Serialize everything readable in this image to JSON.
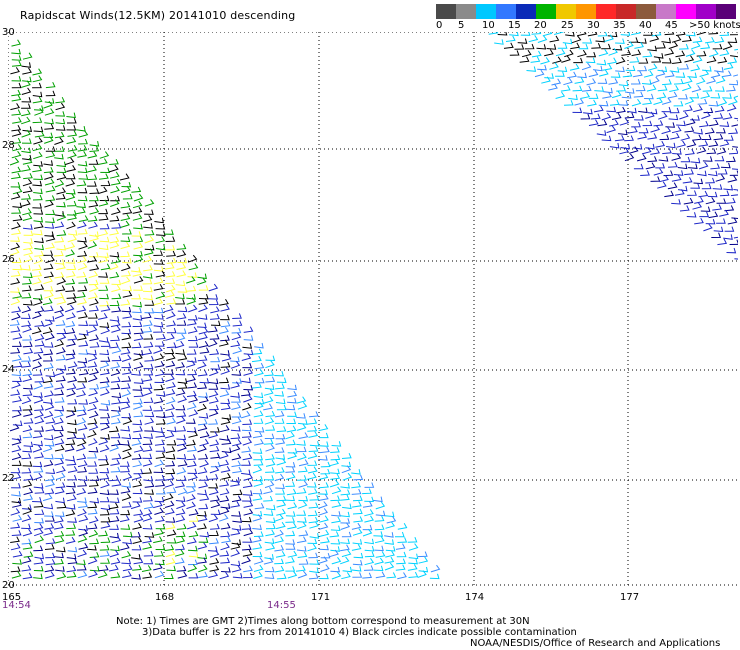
{
  "title": "Rapidscat Winds(12.5KM) 20141010 descending",
  "legend": {
    "labels": [
      "0",
      "5",
      "10",
      "15",
      "20",
      "25",
      "30",
      "35",
      "40",
      "45",
      ">50 knots"
    ],
    "colors": [
      "#4a4a4a",
      "#8a8a8a",
      "#00c8ff",
      "#3278ff",
      "#0a2ab8",
      "#00b400",
      "#f0c800",
      "#ff9600",
      "#ff2828",
      "#c82828",
      "#8c5a3c",
      "#c878c8",
      "#ff00ff",
      "#a000c8",
      "#5a0078"
    ]
  },
  "axes": {
    "lat_labels": [
      "30",
      "28",
      "26",
      "24",
      "22",
      "20"
    ],
    "lon_labels": [
      "165",
      "168",
      "171",
      "174",
      "177"
    ]
  },
  "times": [
    "14:54",
    "14:55"
  ],
  "notes": [
    "Note: 1) Times are GMT 2)Times along bottom correspond to measurement at 30N",
    "3)Data buffer is 22 hrs from 20141010 4) Black circles indicate possible contamination"
  ],
  "credit": "NOAA/NESDIS/Office of Research and Applications",
  "wind_colors": {
    "black": "#000000",
    "green": "#00a000",
    "yellow": "#ffff40",
    "blue": "#1e28c8",
    "lightblue": "#3c8cff",
    "cyan": "#00d2ff",
    "navy": "#00008c"
  }
}
